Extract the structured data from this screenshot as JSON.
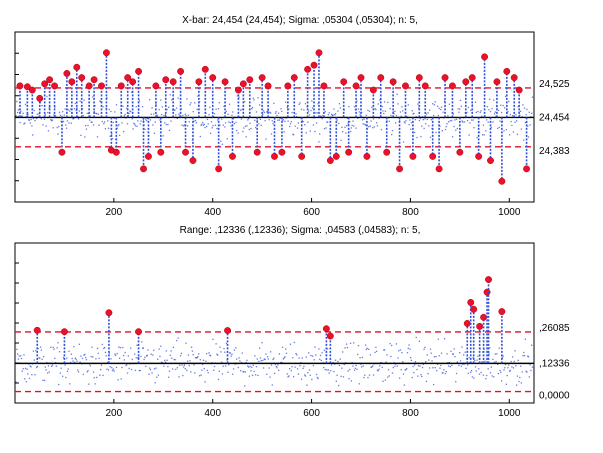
{
  "chart_data": [
    {
      "type": "scatter",
      "title": "X-bar: 24,454 (24,454); Sigma: ,05304 (,05304); n: 5,",
      "xlabel": "",
      "ylabel": "",
      "xlim": [
        0,
        1050
      ],
      "x_ticks": [
        200,
        400,
        600,
        800,
        1000
      ],
      "x_tick_labels": [
        "200",
        "400",
        "600",
        "800",
        "1000"
      ],
      "ylim": [
        24.25,
        24.66
      ],
      "center_line": 24.454,
      "ucl": 24.525,
      "lcl": 24.383,
      "line_labels": [
        "24,525",
        "24,454",
        "24,383"
      ],
      "grid": false,
      "out_of_control_points": [
        [
          10,
          24.53
        ],
        [
          25,
          24.528
        ],
        [
          35,
          24.52
        ],
        [
          50,
          24.5
        ],
        [
          60,
          24.535
        ],
        [
          70,
          24.545
        ],
        [
          80,
          24.53
        ],
        [
          95,
          24.37
        ],
        [
          105,
          24.56
        ],
        [
          115,
          24.54
        ],
        [
          125,
          24.575
        ],
        [
          135,
          24.55
        ],
        [
          150,
          24.53
        ],
        [
          160,
          24.545
        ],
        [
          175,
          24.53
        ],
        [
          185,
          24.61
        ],
        [
          195,
          24.375
        ],
        [
          205,
          24.37
        ],
        [
          215,
          24.53
        ],
        [
          228,
          24.55
        ],
        [
          238,
          24.54
        ],
        [
          250,
          24.565
        ],
        [
          260,
          24.33
        ],
        [
          270,
          24.36
        ],
        [
          285,
          24.53
        ],
        [
          295,
          24.37
        ],
        [
          305,
          24.545
        ],
        [
          320,
          24.54
        ],
        [
          335,
          24.565
        ],
        [
          345,
          24.37
        ],
        [
          360,
          24.35
        ],
        [
          372,
          24.54
        ],
        [
          385,
          24.57
        ],
        [
          400,
          24.55
        ],
        [
          412,
          24.33
        ],
        [
          425,
          24.54
        ],
        [
          440,
          24.36
        ],
        [
          452,
          24.52
        ],
        [
          462,
          24.535
        ],
        [
          475,
          24.545
        ],
        [
          490,
          24.37
        ],
        [
          500,
          24.55
        ],
        [
          512,
          24.53
        ],
        [
          525,
          24.36
        ],
        [
          540,
          24.37
        ],
        [
          552,
          24.53
        ],
        [
          565,
          24.55
        ],
        [
          580,
          24.36
        ],
        [
          592,
          24.57
        ],
        [
          605,
          24.58
        ],
        [
          615,
          24.61
        ],
        [
          625,
          24.53
        ],
        [
          638,
          24.35
        ],
        [
          650,
          24.36
        ],
        [
          665,
          24.54
        ],
        [
          675,
          24.37
        ],
        [
          690,
          24.53
        ],
        [
          700,
          24.55
        ],
        [
          712,
          24.36
        ],
        [
          725,
          24.52
        ],
        [
          740,
          24.55
        ],
        [
          752,
          24.37
        ],
        [
          765,
          24.54
        ],
        [
          778,
          24.33
        ],
        [
          790,
          24.53
        ],
        [
          805,
          24.36
        ],
        [
          818,
          24.55
        ],
        [
          830,
          24.53
        ],
        [
          845,
          24.36
        ],
        [
          858,
          24.33
        ],
        [
          870,
          24.55
        ],
        [
          885,
          24.53
        ],
        [
          900,
          24.37
        ],
        [
          912,
          24.54
        ],
        [
          925,
          24.55
        ],
        [
          938,
          24.36
        ],
        [
          950,
          24.6
        ],
        [
          962,
          24.35
        ],
        [
          975,
          24.54
        ],
        [
          985,
          24.3
        ],
        [
          995,
          24.565
        ],
        [
          1010,
          24.55
        ],
        [
          1020,
          24.52
        ],
        [
          1035,
          24.33
        ]
      ]
    },
    {
      "type": "scatter",
      "title": "Range: ,12336 (,12336); Sigma: ,04583 (,04583); n: 5,",
      "xlabel": "",
      "ylabel": "",
      "xlim": [
        0,
        1050
      ],
      "x_ticks": [
        200,
        400,
        600,
        800,
        1000
      ],
      "x_tick_labels": [
        "200",
        "400",
        "600",
        "800",
        "1000"
      ],
      "ylim": [
        -0.05,
        0.65
      ],
      "center_line": 0.12336,
      "ucl": 0.26085,
      "lcl": 0.0,
      "line_labels": [
        ",26085",
        ",12336",
        "0,0000"
      ],
      "grid": false,
      "out_of_control_points": [
        [
          45,
          0.268
        ],
        [
          100,
          0.262
        ],
        [
          190,
          0.345
        ],
        [
          250,
          0.262
        ],
        [
          430,
          0.267
        ],
        [
          630,
          0.275
        ],
        [
          638,
          0.243
        ],
        [
          915,
          0.298
        ],
        [
          922,
          0.39
        ],
        [
          928,
          0.36
        ],
        [
          940,
          0.285
        ],
        [
          948,
          0.325
        ],
        [
          955,
          0.435
        ],
        [
          958,
          0.49
        ],
        [
          985,
          0.35
        ]
      ]
    }
  ]
}
